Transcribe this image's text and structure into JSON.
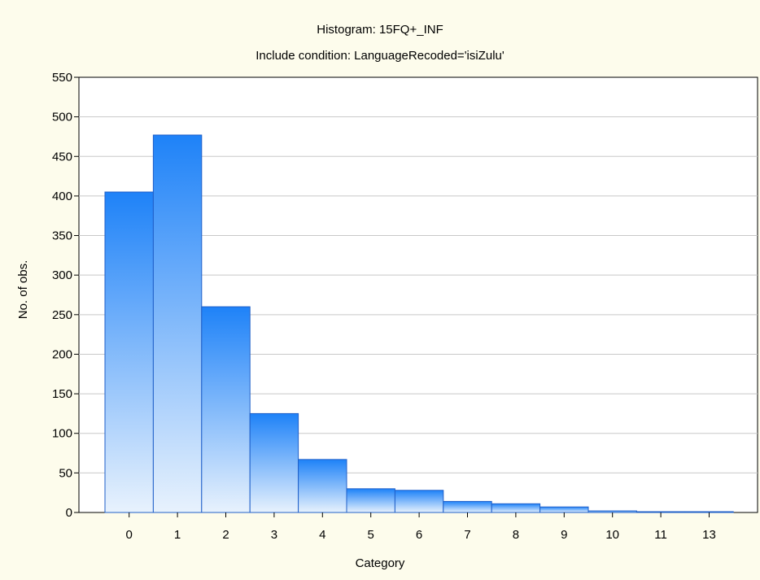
{
  "chart_data": {
    "type": "bar",
    "title": "Histogram: 15FQ+_INF",
    "subtitle": "Include condition: LanguageRecoded='isiZulu'",
    "xlabel": "Category",
    "ylabel": "No. of obs.",
    "categories": [
      "0",
      "1",
      "2",
      "3",
      "4",
      "5",
      "6",
      "7",
      "8",
      "9",
      "10",
      "11",
      "13"
    ],
    "values": [
      405,
      477,
      260,
      125,
      67,
      30,
      28,
      14,
      11,
      7,
      2,
      1,
      1
    ],
    "ylim": [
      0,
      550
    ],
    "yticks": [
      "0",
      "50",
      "100",
      "150",
      "200",
      "250",
      "300",
      "350",
      "400",
      "450",
      "500",
      "550"
    ],
    "grid": true,
    "colors": {
      "background": "#fdfcec",
      "plot_area": "#ffffff",
      "bar_top": "#1e82f8",
      "bar_bottom": "#e8f2fd",
      "bar_stroke": "#1f5fc8",
      "grid": "#c8c8c8"
    }
  }
}
